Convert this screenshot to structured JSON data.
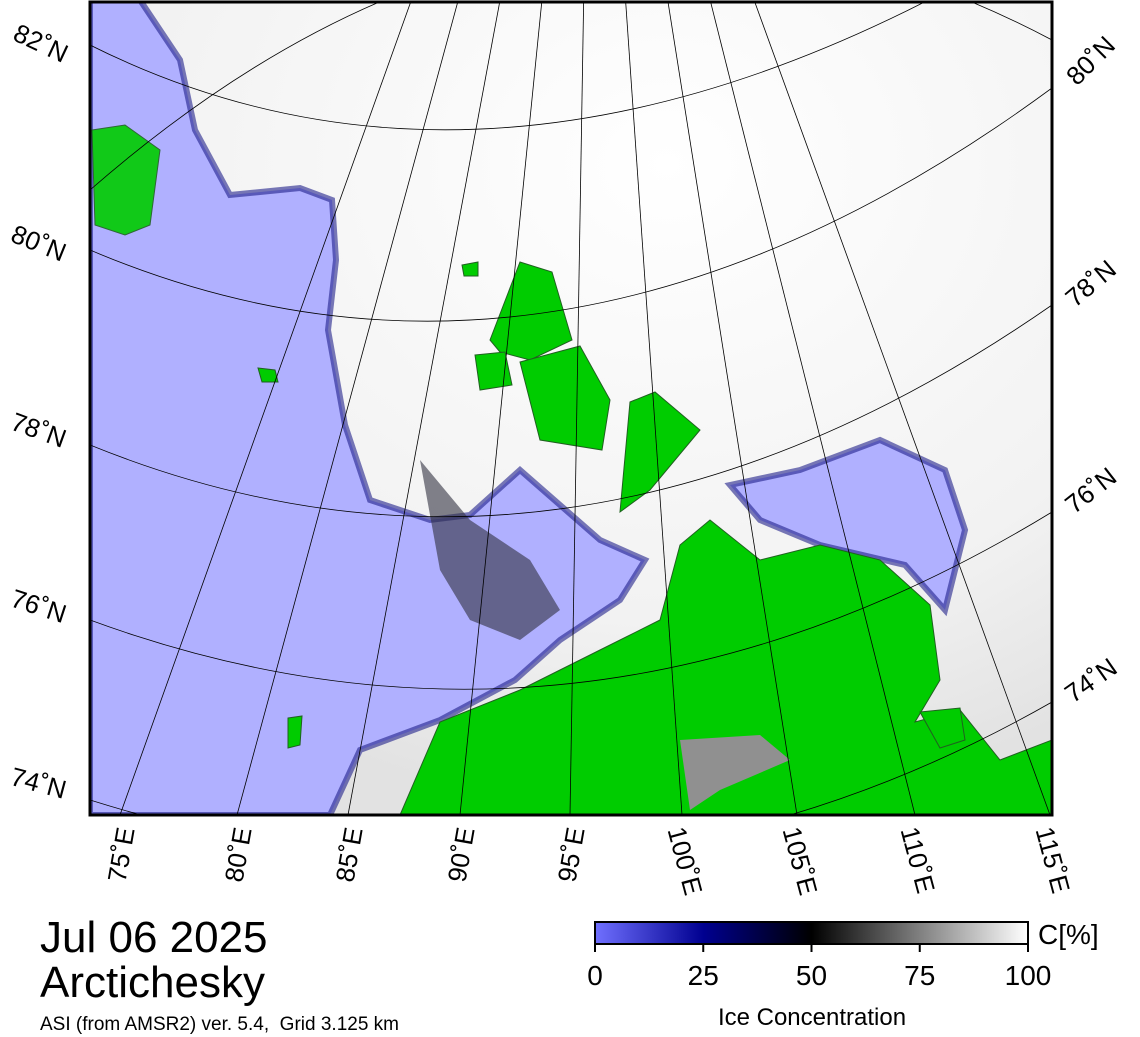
{
  "map": {
    "lat_labels_left": [
      "82˚N",
      "80˚N",
      "78˚N",
      "76˚N",
      "74˚N"
    ],
    "lat_labels_right": [
      "80˚N",
      "78˚N",
      "76˚N",
      "74˚N"
    ],
    "lon_labels": [
      "75˚E",
      "80˚E",
      "85˚E",
      "90˚E",
      "95˚E",
      "100˚E",
      "105˚E",
      "110˚E",
      "115˚E"
    ]
  },
  "date": "Jul 06 2025",
  "region": "Arctichesky",
  "source": "ASI (from AMSR2) ver. 5.4,  Grid 3.125 km",
  "colorbar": {
    "lim": [
      0,
      100
    ],
    "ticks": [
      0,
      25,
      50,
      75,
      100
    ],
    "unit": "C[%]",
    "label": "Ice Concentration"
  }
}
